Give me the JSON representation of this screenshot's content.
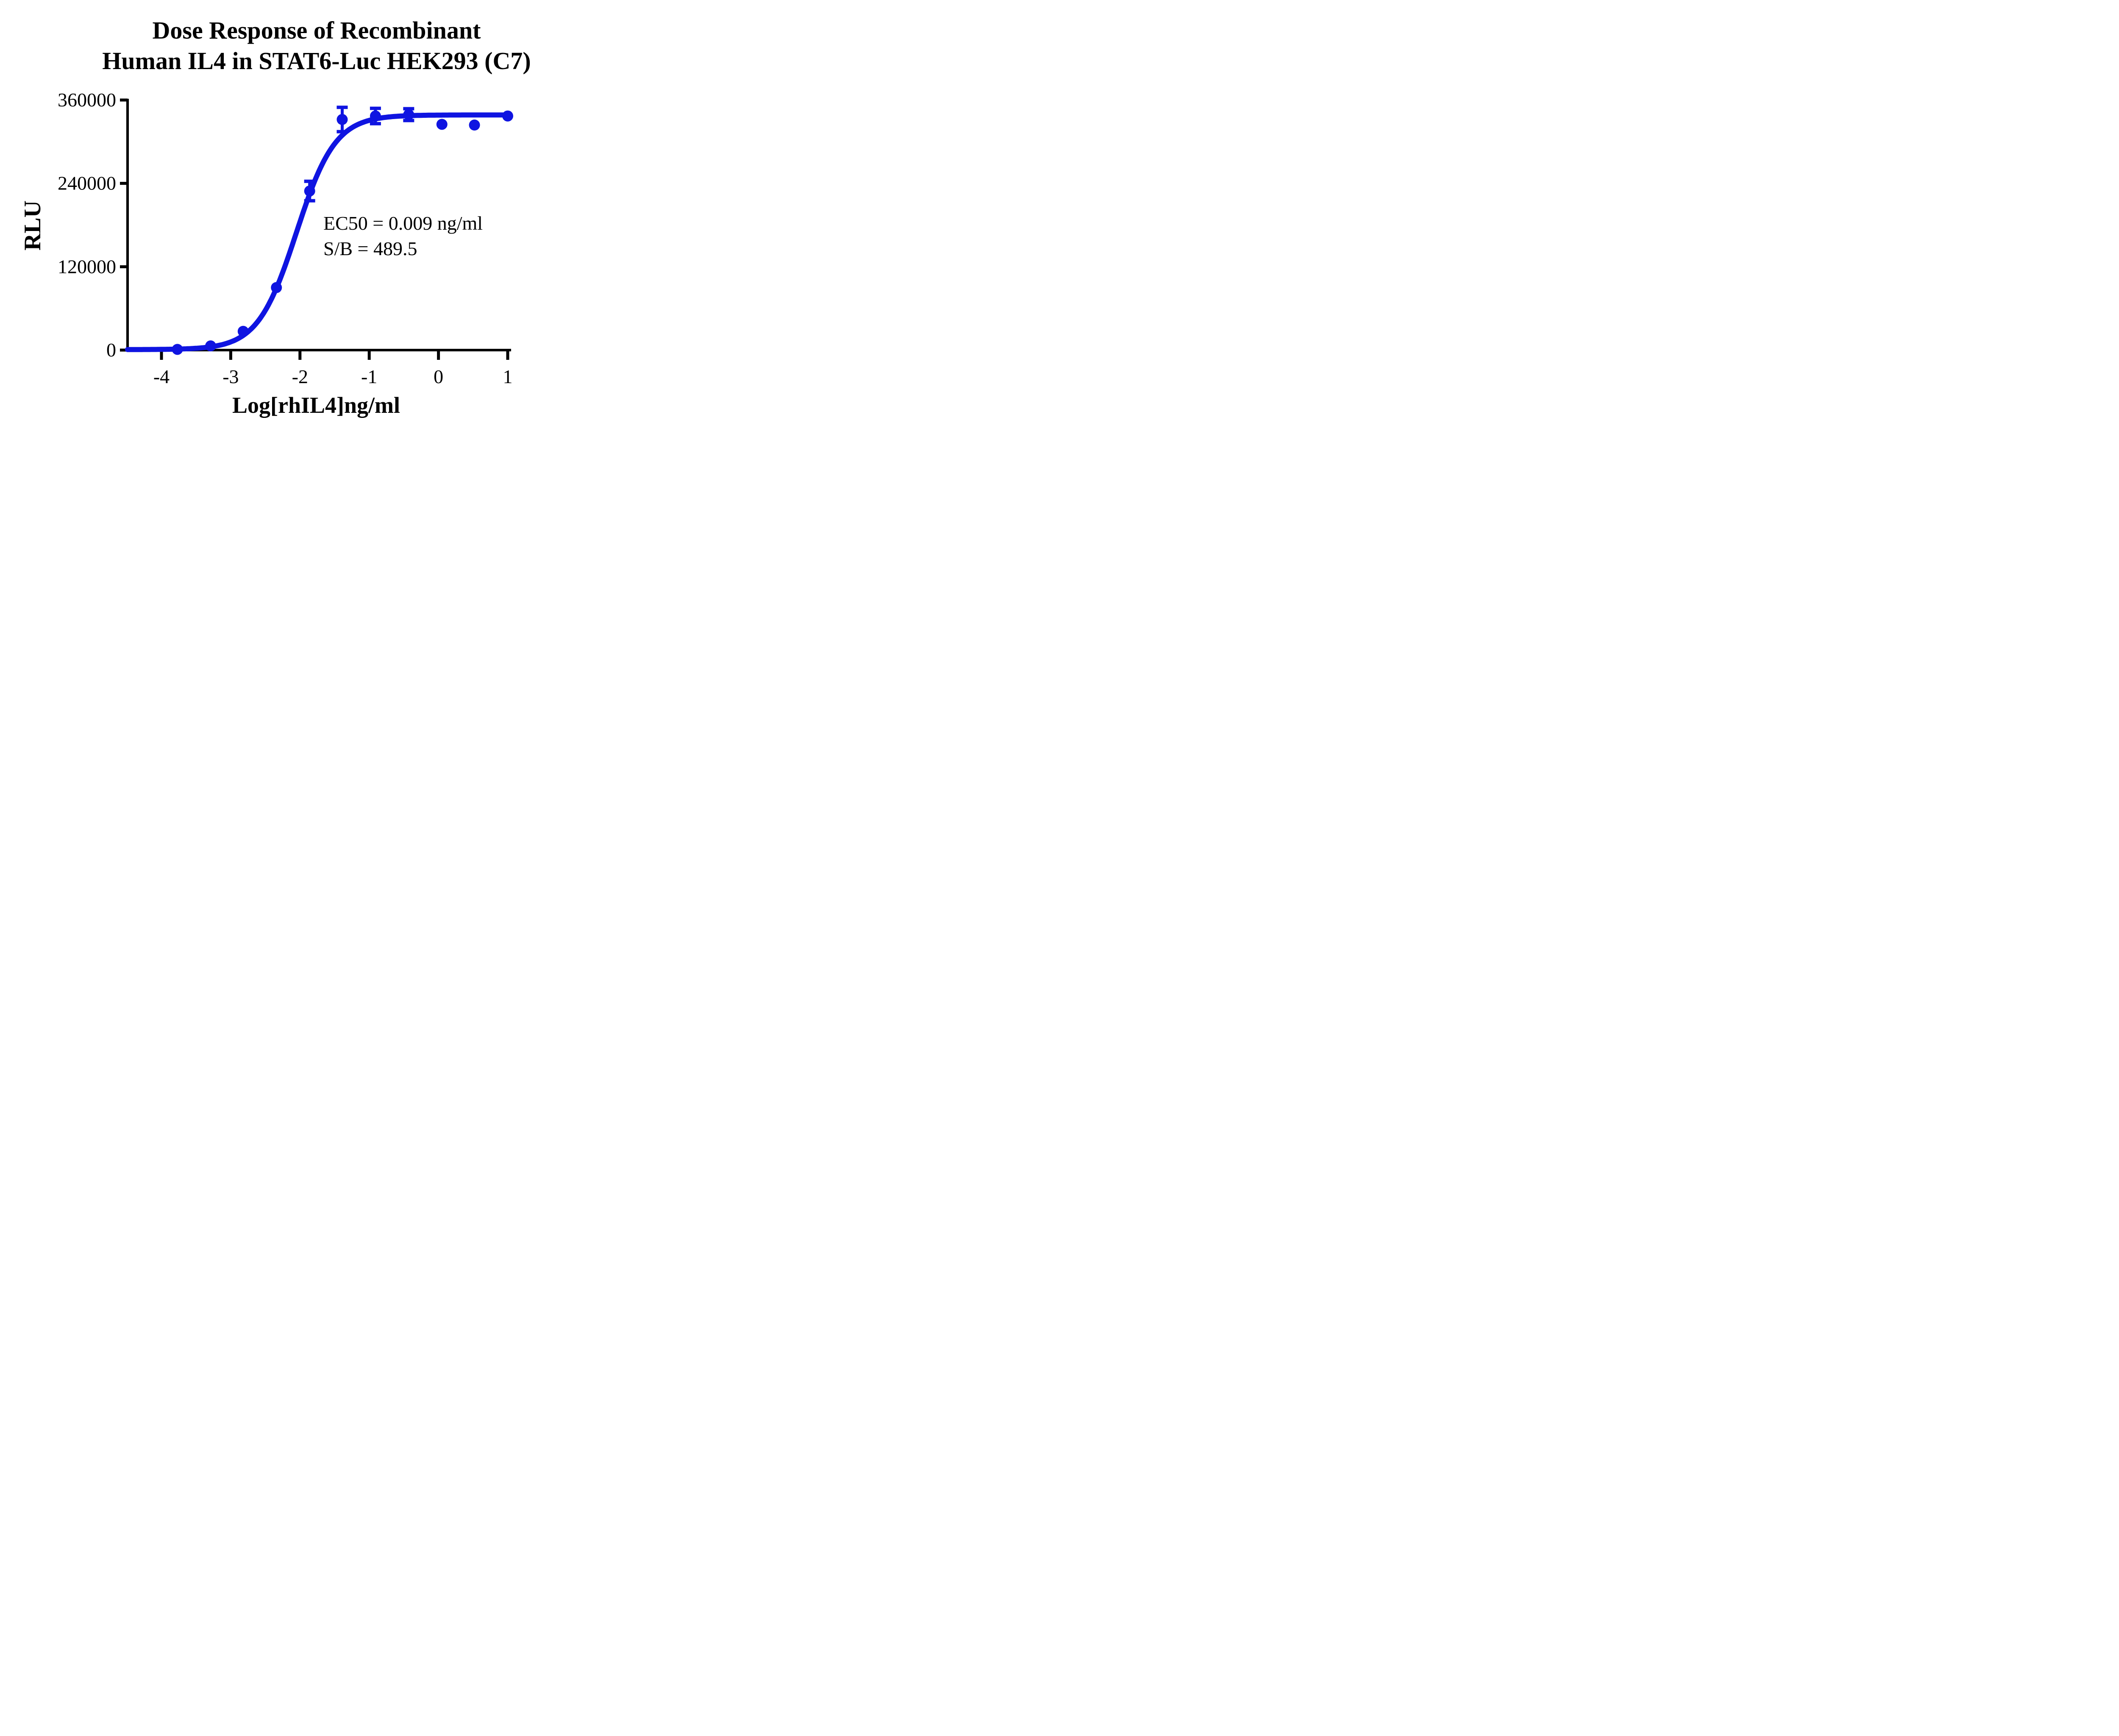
{
  "title": {
    "line1": "Dose Response of Recombinant",
    "line2": "Human IL4 in STAT6-Luc HEK293 (C7)"
  },
  "annotation": {
    "ec50_text": "EC50 = 0.009 ng/ml",
    "sb_text": "S/B = 489.5"
  },
  "colors": {
    "series": "#0f14e1",
    "axis": "#000000",
    "background": "#ffffff"
  },
  "chart_data": {
    "type": "scatter",
    "title": "Dose Response of Recombinant Human IL4 in STAT6-Luc HEK293 (C7)",
    "xlabel": "Log[rhIL4]ng/ml",
    "ylabel": "RLU",
    "xlim": [
      -4.49,
      1.0
    ],
    "ylim": [
      0,
      360000
    ],
    "xticks": [
      -4,
      -3,
      -2,
      -1,
      0,
      1
    ],
    "yticks": [
      0,
      120000,
      240000,
      360000
    ],
    "grid": false,
    "legend": "none",
    "series_name": "Recombinant Human IL4",
    "points": [
      {
        "x": -3.77,
        "y": 1000,
        "err": 0
      },
      {
        "x": -3.29,
        "y": 6000,
        "err": 0
      },
      {
        "x": -2.82,
        "y": 27000,
        "err": 0
      },
      {
        "x": -2.34,
        "y": 90000,
        "err": 0
      },
      {
        "x": -1.86,
        "y": 229000,
        "err": 14000
      },
      {
        "x": -1.39,
        "y": 332000,
        "err": 17500
      },
      {
        "x": -0.91,
        "y": 337000,
        "err": 11000
      },
      {
        "x": -0.43,
        "y": 339000,
        "err": 8500
      },
      {
        "x": 0.05,
        "y": 325000,
        "err": 0
      },
      {
        "x": 0.52,
        "y": 324000,
        "err": 0
      },
      {
        "x": 1.0,
        "y": 337000,
        "err": 0
      }
    ],
    "fit_curve": {
      "model": "4PL",
      "bottom": 700,
      "top": 338500,
      "log_ec50": -2.05,
      "hill": 1.55
    },
    "ec50_ngml": 0.009,
    "signal_to_background": 489.5
  }
}
